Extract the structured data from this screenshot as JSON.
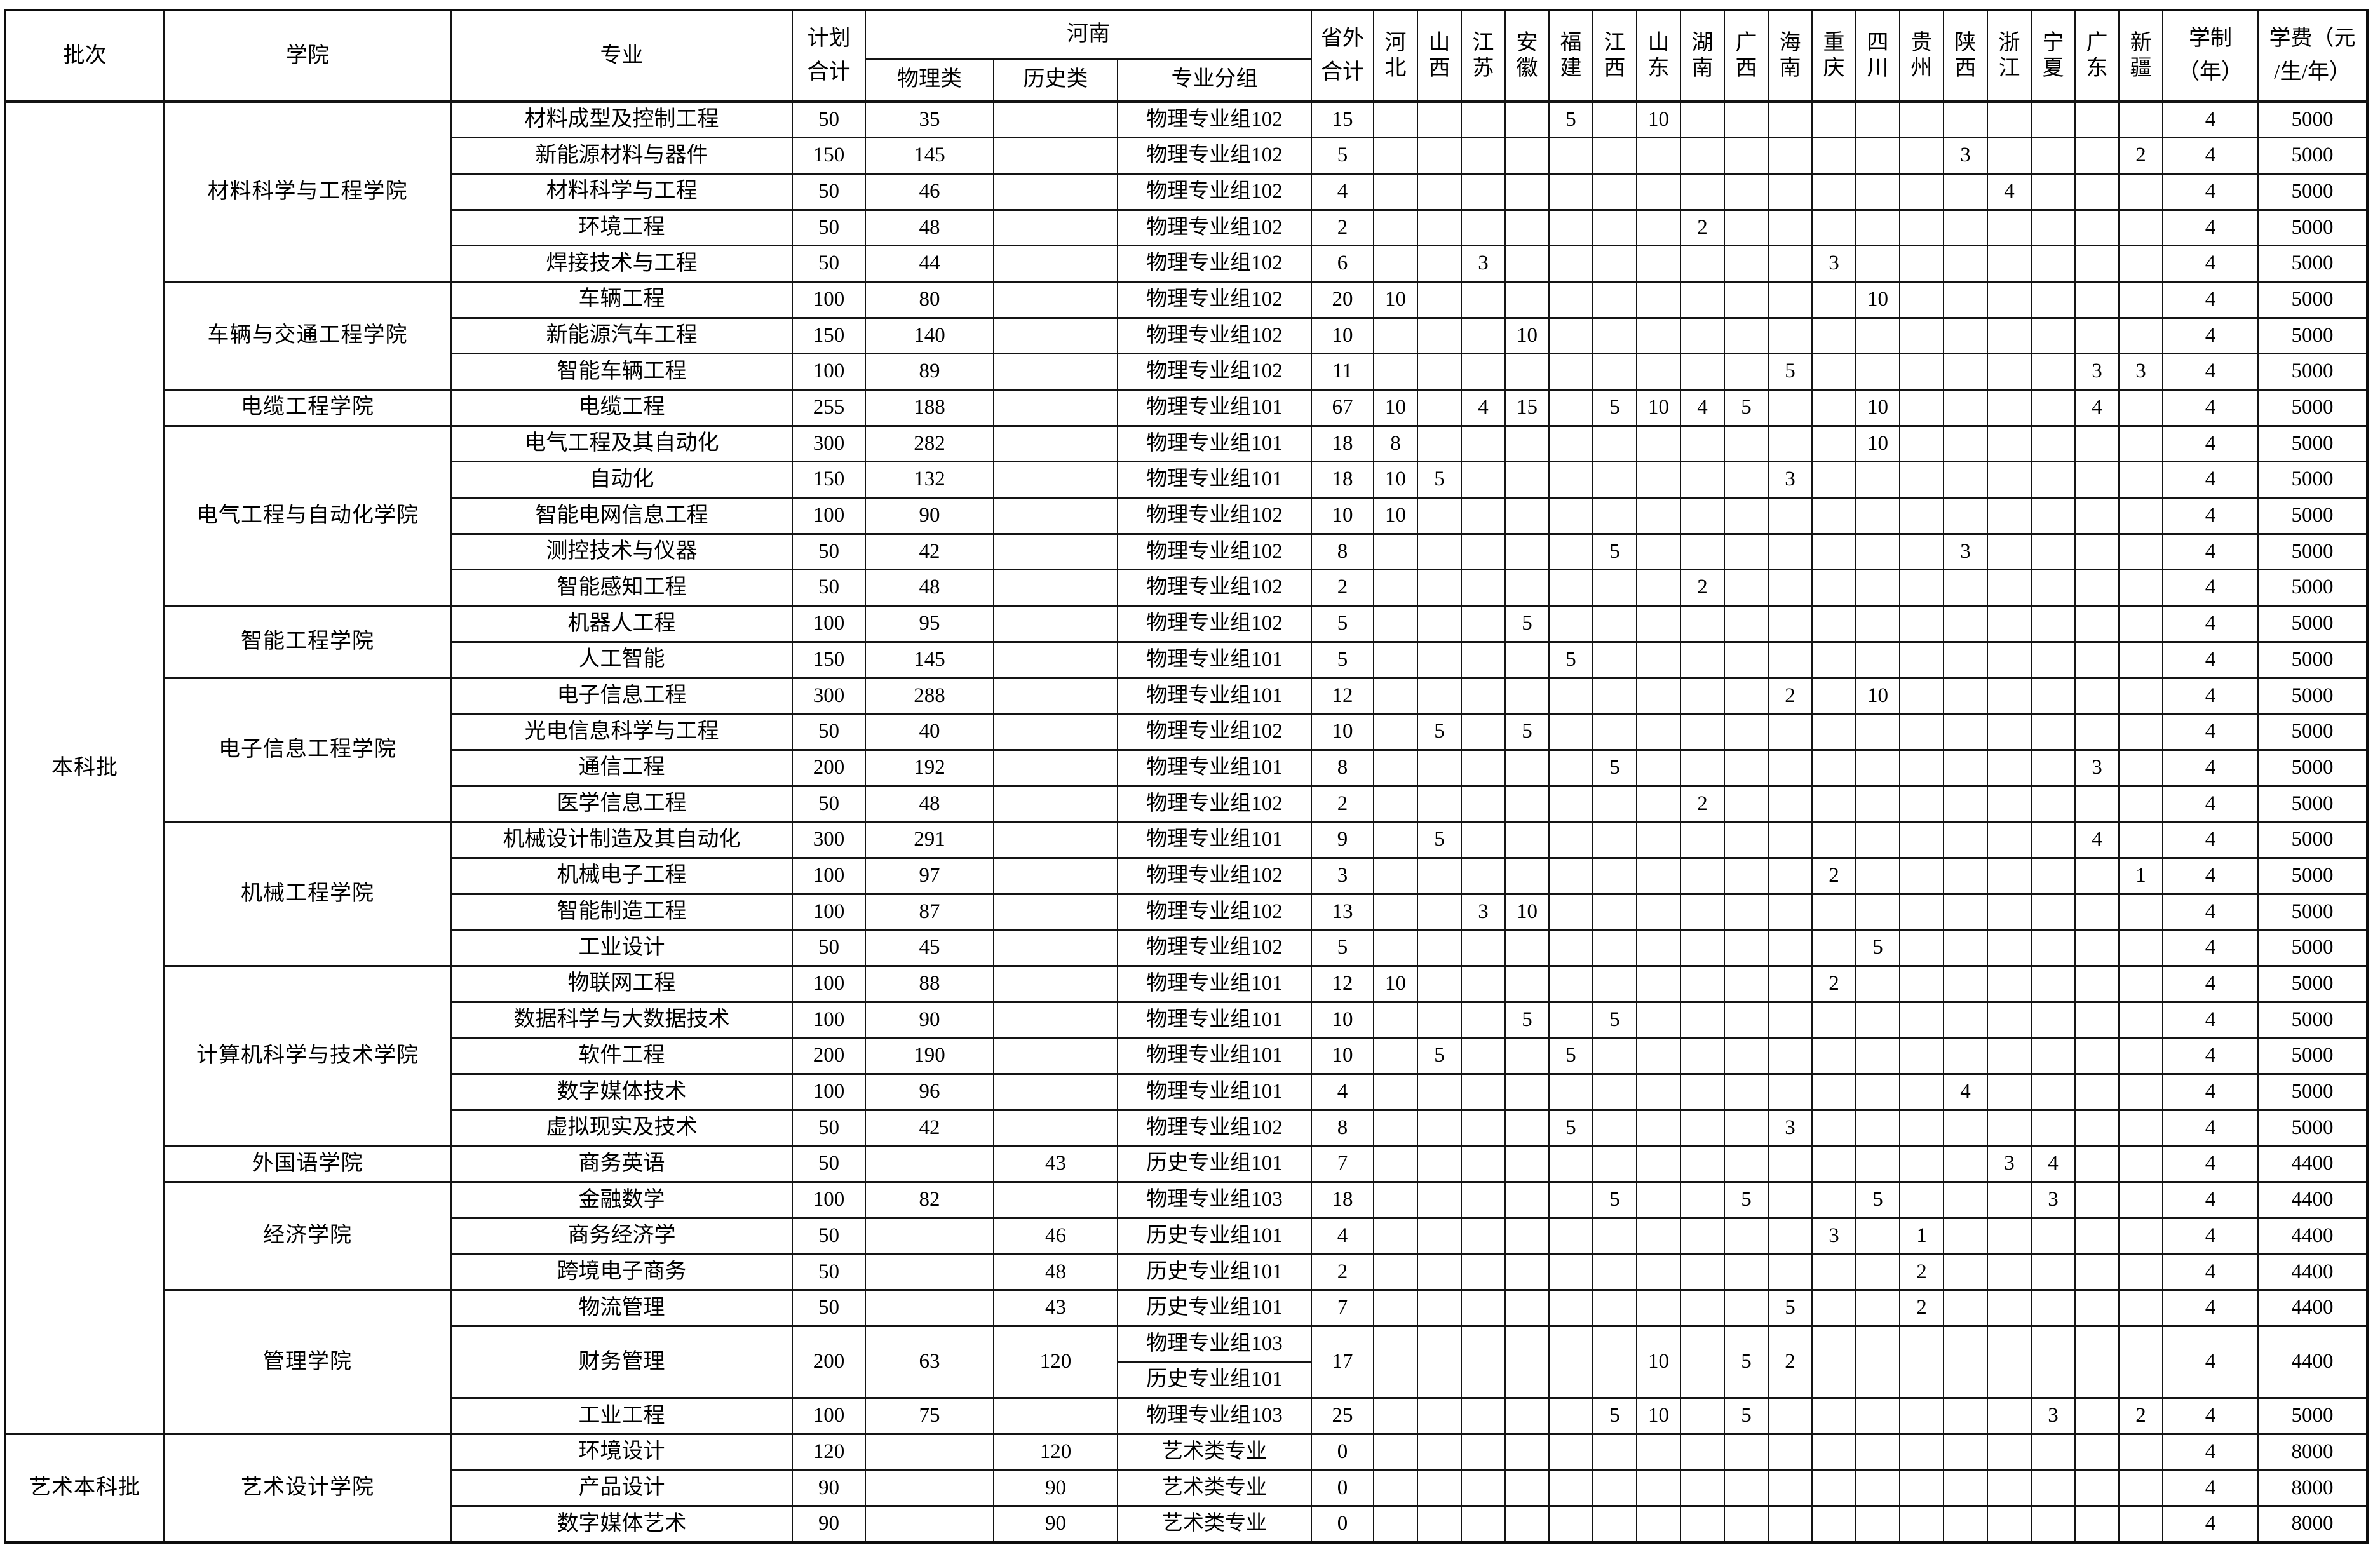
{
  "header": {
    "batch": "批次",
    "college": "学院",
    "major": "专业",
    "plan_l1": "计划",
    "plan_l2": "合计",
    "henan": "河南",
    "physics": "物理类",
    "history": "历史类",
    "group": "专业分组",
    "out_l1": "省外",
    "out_l2": "合计",
    "provinces": [
      "河北",
      "山西",
      "江苏",
      "安徽",
      "福建",
      "江西",
      "山东",
      "湖南",
      "广西",
      "海南",
      "重庆",
      "四川",
      "贵州",
      "陕西",
      "浙江",
      "宁夏",
      "广东",
      "新疆"
    ],
    "duration_l1": "学制",
    "duration_l2": "（年）",
    "tuition_l1": "学费（元",
    "tuition_l2": "/生/年）"
  },
  "batches": [
    {
      "name": "本科批",
      "colleges": [
        {
          "name": "材料科学与工程学院",
          "majors": [
            {
              "name": "材料成型及控制工程",
              "plan": "50",
              "physics": "35",
              "history": "",
              "groups": [
                "物理专业组102"
              ],
              "out": "15",
              "prov": {
                "福建": "5",
                "山东": "10"
              },
              "years": "4",
              "fee": "5000"
            },
            {
              "name": "新能源材料与器件",
              "plan": "150",
              "physics": "145",
              "history": "",
              "groups": [
                "物理专业组102"
              ],
              "out": "5",
              "prov": {
                "陕西": "3",
                "新疆": "2"
              },
              "years": "4",
              "fee": "5000"
            },
            {
              "name": "材料科学与工程",
              "plan": "50",
              "physics": "46",
              "history": "",
              "groups": [
                "物理专业组102"
              ],
              "out": "4",
              "prov": {
                "浙江": "4"
              },
              "years": "4",
              "fee": "5000"
            },
            {
              "name": "环境工程",
              "plan": "50",
              "physics": "48",
              "history": "",
              "groups": [
                "物理专业组102"
              ],
              "out": "2",
              "prov": {
                "湖南": "2"
              },
              "years": "4",
              "fee": "5000"
            },
            {
              "name": "焊接技术与工程",
              "plan": "50",
              "physics": "44",
              "history": "",
              "groups": [
                "物理专业组102"
              ],
              "out": "6",
              "prov": {
                "江苏": "3",
                "重庆": "3"
              },
              "years": "4",
              "fee": "5000"
            }
          ]
        },
        {
          "name": "车辆与交通工程学院",
          "majors": [
            {
              "name": "车辆工程",
              "plan": "100",
              "physics": "80",
              "history": "",
              "groups": [
                "物理专业组102"
              ],
              "out": "20",
              "prov": {
                "河北": "10",
                "四川": "10"
              },
              "years": "4",
              "fee": "5000"
            },
            {
              "name": "新能源汽车工程",
              "plan": "150",
              "physics": "140",
              "history": "",
              "groups": [
                "物理专业组102"
              ],
              "out": "10",
              "prov": {
                "安徽": "10"
              },
              "years": "4",
              "fee": "5000"
            },
            {
              "name": "智能车辆工程",
              "plan": "100",
              "physics": "89",
              "history": "",
              "groups": [
                "物理专业组102"
              ],
              "out": "11",
              "prov": {
                "海南": "5",
                "广东": "3",
                "新疆": "3"
              },
              "years": "4",
              "fee": "5000"
            }
          ]
        },
        {
          "name": "电缆工程学院",
          "majors": [
            {
              "name": "电缆工程",
              "plan": "255",
              "physics": "188",
              "history": "",
              "groups": [
                "物理专业组101"
              ],
              "out": "67",
              "prov": {
                "河北": "10",
                "江苏": "4",
                "安徽": "15",
                "江西": "5",
                "山东": "10",
                "湖南": "4",
                "广西": "5",
                "四川": "10",
                "广东": "4"
              },
              "years": "4",
              "fee": "5000"
            }
          ]
        },
        {
          "name": "电气工程与自动化学院",
          "majors": [
            {
              "name": "电气工程及其自动化",
              "plan": "300",
              "physics": "282",
              "history": "",
              "groups": [
                "物理专业组101"
              ],
              "out": "18",
              "prov": {
                "河北": "8",
                "四川": "10"
              },
              "years": "4",
              "fee": "5000"
            },
            {
              "name": "自动化",
              "plan": "150",
              "physics": "132",
              "history": "",
              "groups": [
                "物理专业组101"
              ],
              "out": "18",
              "prov": {
                "河北": "10",
                "山西": "5",
                "海南": "3"
              },
              "years": "4",
              "fee": "5000"
            },
            {
              "name": "智能电网信息工程",
              "plan": "100",
              "physics": "90",
              "history": "",
              "groups": [
                "物理专业组102"
              ],
              "out": "10",
              "prov": {
                "河北": "10"
              },
              "years": "4",
              "fee": "5000"
            },
            {
              "name": "测控技术与仪器",
              "plan": "50",
              "physics": "42",
              "history": "",
              "groups": [
                "物理专业组102"
              ],
              "out": "8",
              "prov": {
                "江西": "5",
                "陕西": "3"
              },
              "years": "4",
              "fee": "5000"
            },
            {
              "name": "智能感知工程",
              "plan": "50",
              "physics": "48",
              "history": "",
              "groups": [
                "物理专业组102"
              ],
              "out": "2",
              "prov": {
                "湖南": "2"
              },
              "years": "4",
              "fee": "5000"
            }
          ]
        },
        {
          "name": "智能工程学院",
          "majors": [
            {
              "name": "机器人工程",
              "plan": "100",
              "physics": "95",
              "history": "",
              "groups": [
                "物理专业组102"
              ],
              "out": "5",
              "prov": {
                "安徽": "5"
              },
              "years": "4",
              "fee": "5000"
            },
            {
              "name": "人工智能",
              "plan": "150",
              "physics": "145",
              "history": "",
              "groups": [
                "物理专业组101"
              ],
              "out": "5",
              "prov": {
                "福建": "5"
              },
              "years": "4",
              "fee": "5000"
            }
          ]
        },
        {
          "name": "电子信息工程学院",
          "majors": [
            {
              "name": "电子信息工程",
              "plan": "300",
              "physics": "288",
              "history": "",
              "groups": [
                "物理专业组101"
              ],
              "out": "12",
              "prov": {
                "海南": "2",
                "四川": "10"
              },
              "years": "4",
              "fee": "5000"
            },
            {
              "name": "光电信息科学与工程",
              "plan": "50",
              "physics": "40",
              "history": "",
              "groups": [
                "物理专业组102"
              ],
              "out": "10",
              "prov": {
                "山西": "5",
                "安徽": "5"
              },
              "years": "4",
              "fee": "5000"
            },
            {
              "name": "通信工程",
              "plan": "200",
              "physics": "192",
              "history": "",
              "groups": [
                "物理专业组101"
              ],
              "out": "8",
              "prov": {
                "江西": "5",
                "广东": "3"
              },
              "years": "4",
              "fee": "5000"
            },
            {
              "name": "医学信息工程",
              "plan": "50",
              "physics": "48",
              "history": "",
              "groups": [
                "物理专业组102"
              ],
              "out": "2",
              "prov": {
                "湖南": "2"
              },
              "years": "4",
              "fee": "5000"
            }
          ]
        },
        {
          "name": "机械工程学院",
          "majors": [
            {
              "name": "机械设计制造及其自动化",
              "plan": "300",
              "physics": "291",
              "history": "",
              "groups": [
                "物理专业组101"
              ],
              "out": "9",
              "prov": {
                "山西": "5",
                "广东": "4"
              },
              "years": "4",
              "fee": "5000"
            },
            {
              "name": "机械电子工程",
              "plan": "100",
              "physics": "97",
              "history": "",
              "groups": [
                "物理专业组102"
              ],
              "out": "3",
              "prov": {
                "重庆": "2",
                "新疆": "1"
              },
              "years": "4",
              "fee": "5000"
            },
            {
              "name": "智能制造工程",
              "plan": "100",
              "physics": "87",
              "history": "",
              "groups": [
                "物理专业组102"
              ],
              "out": "13",
              "prov": {
                "江苏": "3",
                "安徽": "10"
              },
              "years": "4",
              "fee": "5000"
            },
            {
              "name": "工业设计",
              "plan": "50",
              "physics": "45",
              "history": "",
              "groups": [
                "物理专业组102"
              ],
              "out": "5",
              "prov": {
                "四川": "5"
              },
              "years": "4",
              "fee": "5000"
            }
          ]
        },
        {
          "name": "计算机科学与技术学院",
          "majors": [
            {
              "name": "物联网工程",
              "plan": "100",
              "physics": "88",
              "history": "",
              "groups": [
                "物理专业组101"
              ],
              "out": "12",
              "prov": {
                "河北": "10",
                "重庆": "2"
              },
              "years": "4",
              "fee": "5000"
            },
            {
              "name": "数据科学与大数据技术",
              "plan": "100",
              "physics": "90",
              "history": "",
              "groups": [
                "物理专业组101"
              ],
              "out": "10",
              "prov": {
                "安徽": "5",
                "江西": "5"
              },
              "years": "4",
              "fee": "5000"
            },
            {
              "name": "软件工程",
              "plan": "200",
              "physics": "190",
              "history": "",
              "groups": [
                "物理专业组101"
              ],
              "out": "10",
              "prov": {
                "山西": "5",
                "福建": "5"
              },
              "years": "4",
              "fee": "5000"
            },
            {
              "name": "数字媒体技术",
              "plan": "100",
              "physics": "96",
              "history": "",
              "groups": [
                "物理专业组101"
              ],
              "out": "4",
              "prov": {
                "陕西": "4"
              },
              "years": "4",
              "fee": "5000"
            },
            {
              "name": "虚拟现实及技术",
              "plan": "50",
              "physics": "42",
              "history": "",
              "groups": [
                "物理专业组102"
              ],
              "out": "8",
              "prov": {
                "福建": "5",
                "海南": "3"
              },
              "years": "4",
              "fee": "5000"
            }
          ]
        },
        {
          "name": "外国语学院",
          "majors": [
            {
              "name": "商务英语",
              "plan": "50",
              "physics": "",
              "history": "43",
              "groups": [
                "历史专业组101"
              ],
              "out": "7",
              "prov": {
                "浙江": "3",
                "宁夏": "4"
              },
              "years": "4",
              "fee": "4400"
            }
          ]
        },
        {
          "name": "经济学院",
          "majors": [
            {
              "name": "金融数学",
              "plan": "100",
              "physics": "82",
              "history": "",
              "groups": [
                "物理专业组103"
              ],
              "out": "18",
              "prov": {
                "江西": "5",
                "广西": "5",
                "四川": "5",
                "宁夏": "3"
              },
              "years": "4",
              "fee": "4400"
            },
            {
              "name": "商务经济学",
              "plan": "50",
              "physics": "",
              "history": "46",
              "groups": [
                "历史专业组101"
              ],
              "out": "4",
              "prov": {
                "重庆": "3",
                "贵州": "1"
              },
              "years": "4",
              "fee": "4400"
            },
            {
              "name": "跨境电子商务",
              "plan": "50",
              "physics": "",
              "history": "48",
              "groups": [
                "历史专业组101"
              ],
              "out": "2",
              "prov": {
                "贵州": "2"
              },
              "years": "4",
              "fee": "4400"
            }
          ]
        },
        {
          "name": "管理学院",
          "majors": [
            {
              "name": "物流管理",
              "plan": "50",
              "physics": "",
              "history": "43",
              "groups": [
                "历史专业组101"
              ],
              "out": "7",
              "prov": {
                "海南": "5",
                "贵州": "2"
              },
              "years": "4",
              "fee": "4400"
            },
            {
              "name": "财务管理",
              "plan": "200",
              "physics": "63",
              "history": "120",
              "groups": [
                "物理专业组103",
                "历史专业组101"
              ],
              "out": "17",
              "prov": {
                "山东": "10",
                "广西": "5",
                "海南": "2"
              },
              "years": "4",
              "fee": "4400"
            },
            {
              "name": "工业工程",
              "plan": "100",
              "physics": "75",
              "history": "",
              "groups": [
                "物理专业组103"
              ],
              "out": "25",
              "prov": {
                "江西": "5",
                "山东": "10",
                "广西": "5",
                "宁夏": "3",
                "新疆": "2"
              },
              "years": "4",
              "fee": "5000"
            }
          ]
        }
      ]
    },
    {
      "name": "艺术本科批",
      "colleges": [
        {
          "name": "艺术设计学院",
          "majors": [
            {
              "name": "环境设计",
              "plan": "120",
              "physics": "",
              "history": "120",
              "groups": [
                "艺术类专业"
              ],
              "out": "0",
              "prov": {},
              "years": "4",
              "fee": "8000"
            },
            {
              "name": "产品设计",
              "plan": "90",
              "physics": "",
              "history": "90",
              "groups": [
                "艺术类专业"
              ],
              "out": "0",
              "prov": {},
              "years": "4",
              "fee": "8000"
            },
            {
              "name": "数字媒体艺术",
              "plan": "90",
              "physics": "",
              "history": "90",
              "groups": [
                "艺术类专业"
              ],
              "out": "0",
              "prov": {},
              "years": "4",
              "fee": "8000"
            }
          ]
        }
      ]
    }
  ]
}
